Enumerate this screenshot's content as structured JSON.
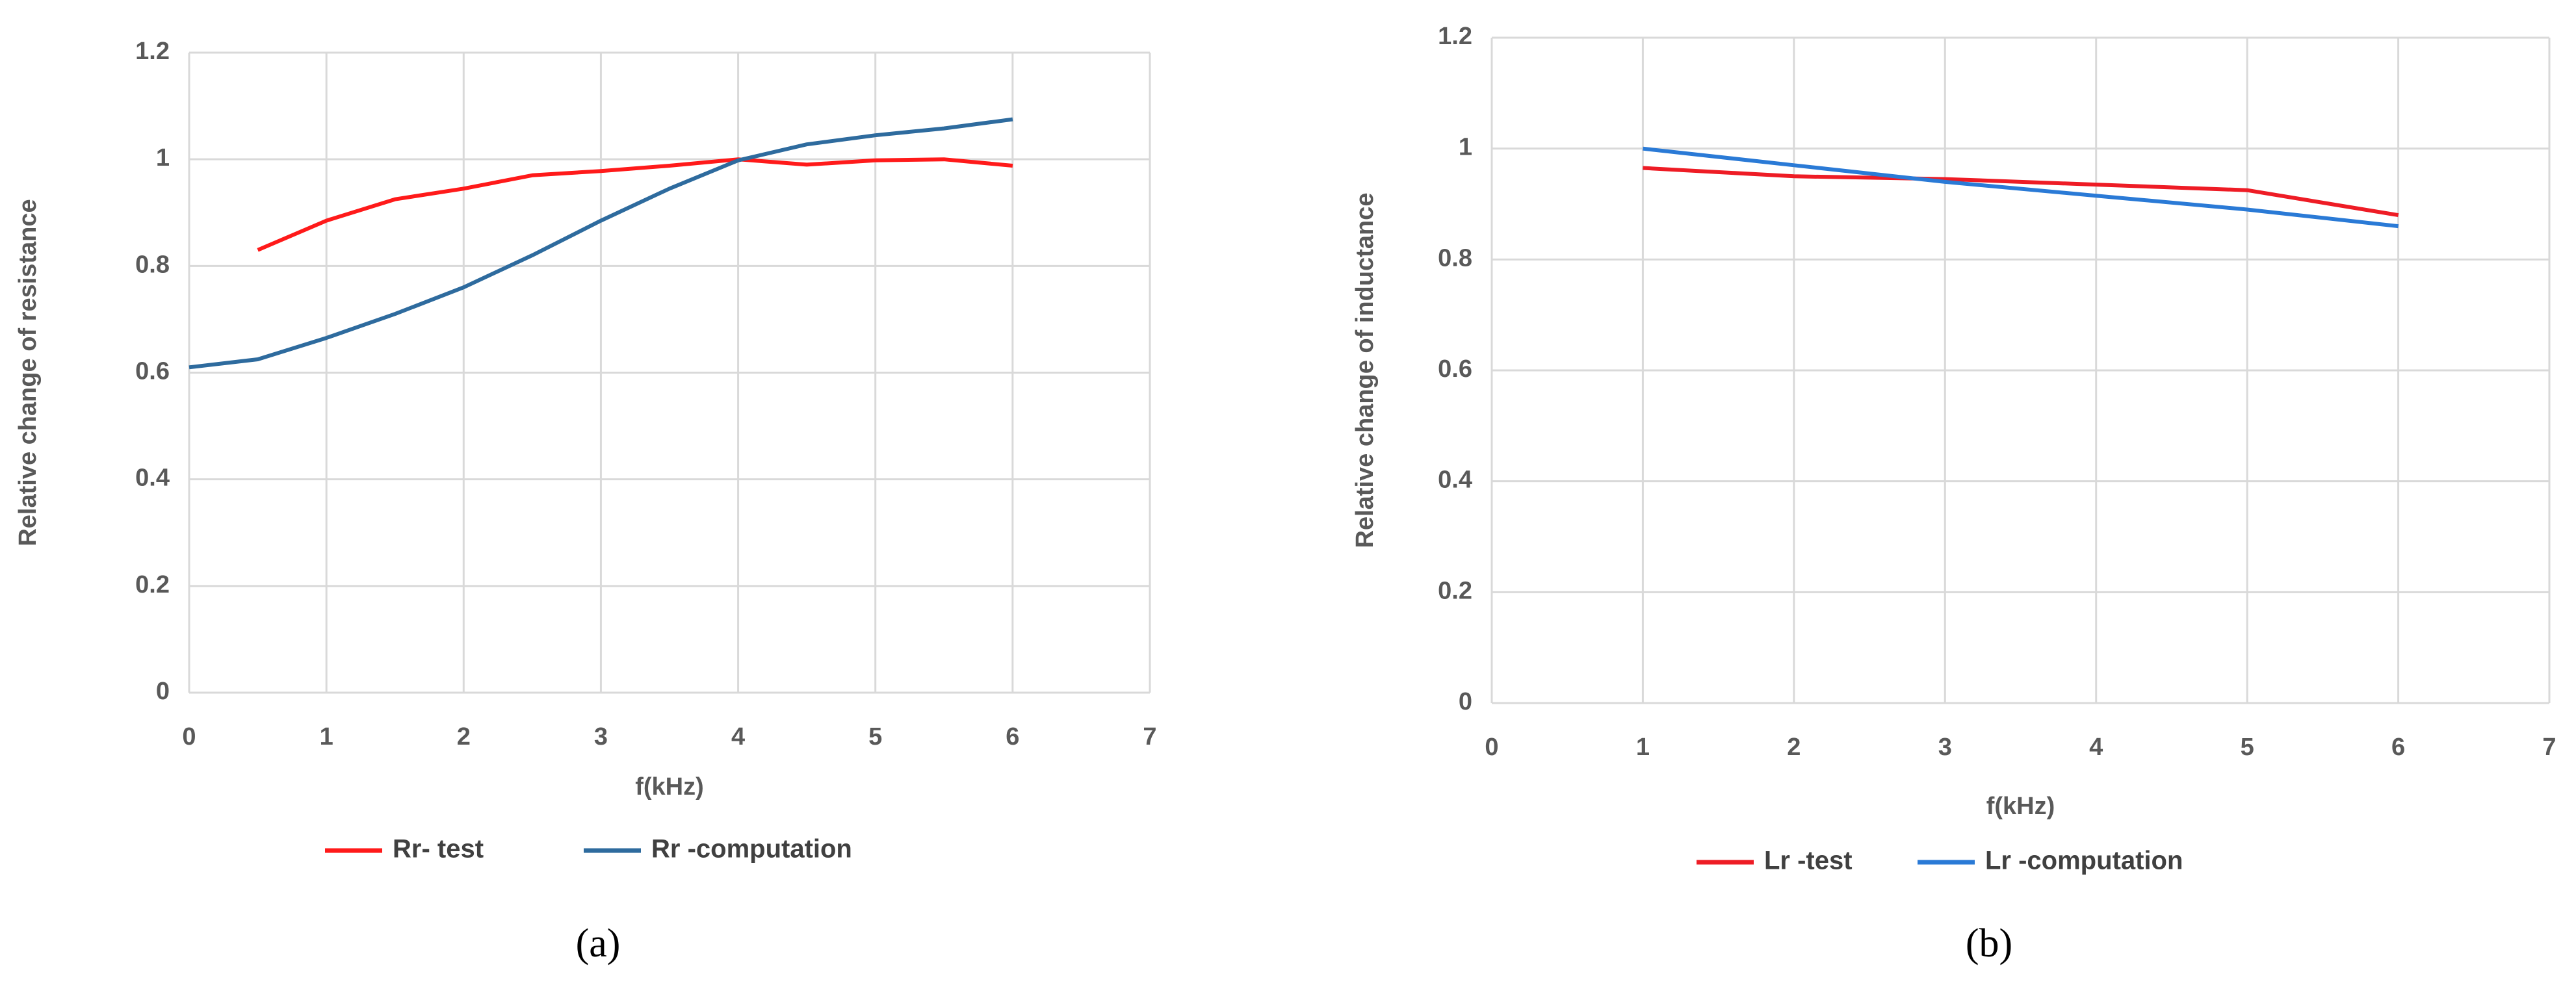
{
  "chart_data": [
    {
      "type": "line",
      "caption": "(a)",
      "xlabel": "f(kHz)",
      "ylabel": "Relative change of resistance",
      "xlim": [
        0,
        7
      ],
      "xticks": [
        0,
        1,
        2,
        3,
        4,
        5,
        6,
        7
      ],
      "ylim": [
        0,
        1.2
      ],
      "yticks": [
        0,
        0.2,
        0.4,
        0.6,
        0.8,
        1,
        1.2
      ],
      "grid": true,
      "legend": "bottom",
      "series": [
        {
          "name": "Rr- test",
          "color": "#ff1a1a",
          "x": [
            0.5,
            1,
            1.5,
            2,
            2.5,
            3,
            3.5,
            4,
            4.5,
            5,
            5.5,
            6
          ],
          "values": [
            0.83,
            0.885,
            0.925,
            0.945,
            0.97,
            0.978,
            0.988,
            1.0,
            0.99,
            0.998,
            1.0,
            0.988
          ]
        },
        {
          "name": "Rr -computation",
          "color": "#2e6b9e",
          "x": [
            0,
            0.5,
            1,
            1.5,
            2,
            2.5,
            3,
            3.5,
            4,
            4.5,
            5,
            5.5,
            6
          ],
          "values": [
            0.61,
            0.625,
            0.665,
            0.71,
            0.76,
            0.82,
            0.885,
            0.945,
            0.998,
            1.028,
            1.045,
            1.058,
            1.075
          ]
        }
      ]
    },
    {
      "type": "line",
      "caption": "(b)",
      "xlabel": "f(kHz)",
      "ylabel": "Relative change of inductance",
      "xlim": [
        0,
        7
      ],
      "xticks": [
        0,
        1,
        2,
        3,
        4,
        5,
        6,
        7
      ],
      "ylim": [
        0,
        1.2
      ],
      "yticks": [
        0,
        0.2,
        0.4,
        0.6,
        0.8,
        1,
        1.2
      ],
      "grid": true,
      "legend": "bottom",
      "series": [
        {
          "name": "Lr -test",
          "color": "#ee1c25",
          "x": [
            1,
            2,
            3,
            4,
            5,
            6
          ],
          "values": [
            0.965,
            0.95,
            0.945,
            0.935,
            0.925,
            0.88
          ]
        },
        {
          "name": "Lr -computation",
          "color": "#2a7ad6",
          "x": [
            1,
            2,
            3,
            4,
            5,
            6
          ],
          "values": [
            1.0,
            0.97,
            0.94,
            0.915,
            0.89,
            0.86
          ]
        }
      ]
    }
  ]
}
